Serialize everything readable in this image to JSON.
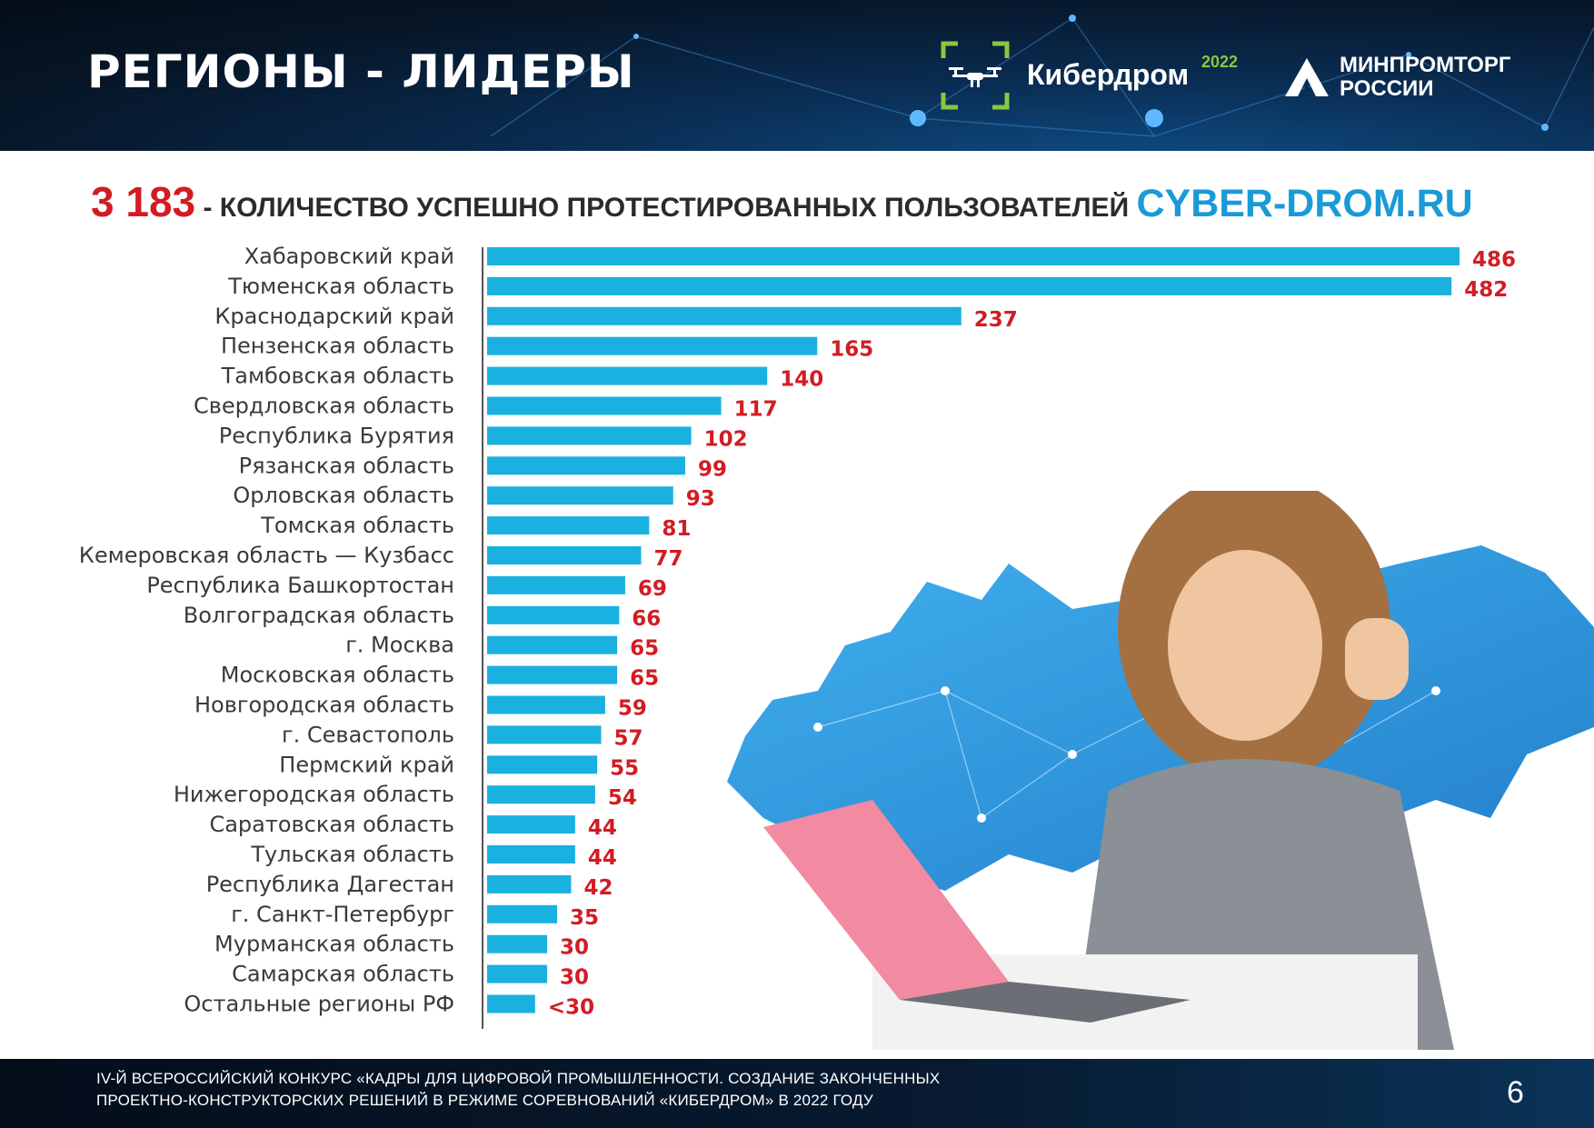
{
  "header": {
    "title": "РЕГИОНЫ - ЛИДЕРЫ",
    "brand": {
      "name": "Кибердром",
      "year": "2022",
      "icon": "drone-icon"
    },
    "org": {
      "line1": "МИНПРОМТОРГ",
      "line2": "РОССИИ",
      "icon": "minpromtorg-logo"
    }
  },
  "subtitle": {
    "total": "3 183",
    "text": " - КОЛИЧЕСТВО УСПЕШНО ПРОТЕСТИРОВАННЫХ ПОЛЬЗОВАТЕЛЕЙ ",
    "site": "CYBER-DROM.RU"
  },
  "colors": {
    "bar": "#1ab0e0",
    "value": "#d21c24",
    "accent": "#1a9ad6"
  },
  "chart_data": {
    "type": "bar",
    "orientation": "horizontal",
    "categories": [
      "Хабаровский край",
      "Тюменская область",
      "Краснодарский край",
      "Пензенская область",
      "Тамбовская область",
      "Свердловская область",
      "Республика Бурятия",
      "Рязанская область",
      "Орловская область",
      "Томская область",
      "Кемеровская область — Кузбасс",
      "Республика Башкортостан",
      "Волгоградская область",
      "г. Москва",
      "Московская область",
      "Новгородская область",
      "г. Севастополь",
      "Пермский край",
      "Нижегородская область",
      "Саратовская область",
      "Тульская область",
      "Республика Дагестан",
      "г. Санкт-Петербург",
      "Мурманская область",
      "Самарская область",
      "Остальные регионы РФ"
    ],
    "values": [
      486,
      482,
      237,
      165,
      140,
      117,
      102,
      99,
      93,
      81,
      77,
      69,
      66,
      65,
      65,
      59,
      57,
      55,
      54,
      44,
      44,
      42,
      35,
      30,
      30,
      24
    ],
    "value_labels": [
      "486",
      "482",
      "237",
      "165",
      "140",
      "117",
      "102",
      "99",
      "93",
      "81",
      "77",
      "69",
      "66",
      "65",
      "65",
      "59",
      "57",
      "55",
      "54",
      "44",
      "44",
      "42",
      "35",
      "30",
      "30",
      "<30"
    ],
    "xlim": [
      0,
      486
    ],
    "grid": false,
    "legend": "none"
  },
  "footer": {
    "line1": "IV-Й ВСЕРОССИЙСКИЙ КОНКУРС «КАДРЫ ДЛЯ ЦИФРОВОЙ ПРОМЫШЛЕННОСТИ. СОЗДАНИЕ ЗАКОНЧЕННЫХ",
    "line2": "ПРОЕКТНО-КОНСТРУКТОРСКИХ РЕШЕНИЙ В РЕЖИМЕ СОРЕВНОВАНИЙ «КИБЕРДРОМ» В 2022 ГОДУ",
    "page": "6"
  }
}
